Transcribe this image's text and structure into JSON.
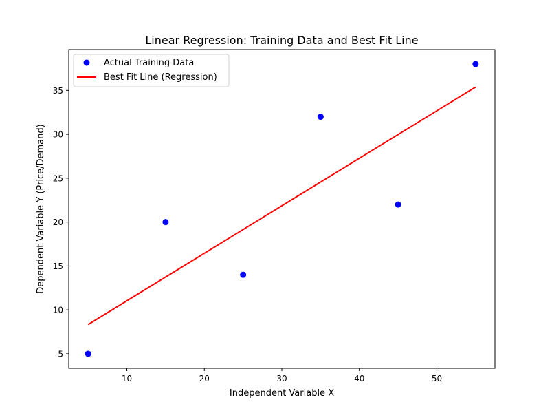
{
  "chart_data": {
    "type": "scatter",
    "title": "Linear Regression: Training Data and Best Fit Line",
    "xlabel": "Independent Variable X",
    "ylabel": "Dependent Variable Y (Price/Demand)",
    "xlim": [
      2.5,
      57.5
    ],
    "ylim": [
      3.35,
      39.65
    ],
    "x_ticks": [
      10,
      20,
      30,
      40,
      50
    ],
    "y_ticks": [
      5,
      10,
      15,
      20,
      25,
      30,
      35
    ],
    "grid": false,
    "legend_position": "upper-left",
    "series": [
      {
        "name": "Actual Training Data",
        "type": "scatter",
        "color": "#0000ff",
        "points": [
          {
            "x": 5,
            "y": 5
          },
          {
            "x": 15,
            "y": 20
          },
          {
            "x": 25,
            "y": 14
          },
          {
            "x": 35,
            "y": 32
          },
          {
            "x": 45,
            "y": 22
          },
          {
            "x": 55,
            "y": 38
          }
        ]
      },
      {
        "name": "Best Fit Line (Regression)",
        "type": "line",
        "color": "#ff0000",
        "points": [
          {
            "x": 5,
            "y": 8.33
          },
          {
            "x": 55,
            "y": 35.38
          }
        ]
      }
    ]
  }
}
